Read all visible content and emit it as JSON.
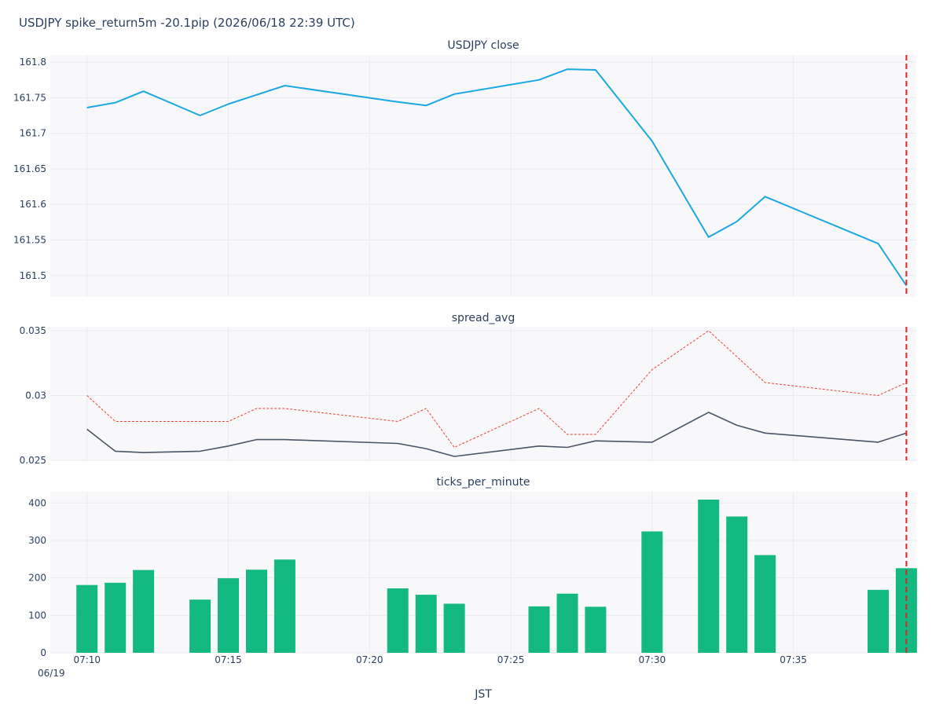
{
  "title": "USDJPY spike_return5m -20.1pip (2026/06/18 22:39 UTC)",
  "xlabel": "JST",
  "x_ticks": [
    "07:10",
    "07:15",
    "07:20",
    "07:25",
    "07:30",
    "07:35"
  ],
  "x_date_label": "06/19",
  "event_time": "07:39",
  "colors": {
    "close": "#1ba7e1",
    "spread_avg": "#4a5565",
    "spread_max": "#e8423a",
    "ticks": "#13b980",
    "event_line": "#d62728"
  },
  "chart_data": [
    {
      "type": "line",
      "title": "USDJPY close",
      "ylim": [
        161.47,
        161.81
      ],
      "y_ticks": [
        "161.5",
        "161.55",
        "161.6",
        "161.65",
        "161.7",
        "161.75",
        "161.8"
      ],
      "x": [
        "07:10",
        "07:11",
        "07:12",
        "07:14",
        "07:15",
        "07:17",
        "07:21",
        "07:22",
        "07:23",
        "07:26",
        "07:27",
        "07:28",
        "07:30",
        "07:32",
        "07:33",
        "07:34",
        "07:38",
        "07:39"
      ],
      "values": [
        161.736,
        161.743,
        161.759,
        161.725,
        161.741,
        161.767,
        161.744,
        161.739,
        161.755,
        161.775,
        161.79,
        161.789,
        161.689,
        161.554,
        161.576,
        161.611,
        161.545,
        161.486
      ],
      "grid": true
    },
    {
      "type": "line",
      "title": "spread_avg",
      "ylim": [
        0.025,
        0.0353
      ],
      "y_ticks": [
        "0.025",
        "0.03",
        "0.035"
      ],
      "series": [
        {
          "x": [
            "07:10",
            "07:11",
            "07:12",
            "07:14",
            "07:15",
            "07:16",
            "07:17",
            "07:21",
            "07:22",
            "07:23",
            "07:26",
            "07:27",
            "07:28",
            "07:30",
            "07:32",
            "07:33",
            "07:34",
            "07:38",
            "07:39"
          ],
          "values": [
            0.0274,
            0.0257,
            0.0256,
            0.0257,
            0.0261,
            0.0266,
            0.0266,
            0.0263,
            0.0259,
            0.0253,
            0.0261,
            0.026,
            0.0265,
            0.0264,
            0.0287,
            0.0277,
            0.0271,
            0.0264,
            0.0271
          ],
          "style": "solid"
        },
        {
          "x": [
            "07:10",
            "07:11",
            "07:12",
            "07:14",
            "07:15",
            "07:16",
            "07:17",
            "07:21",
            "07:22",
            "07:23",
            "07:26",
            "07:27",
            "07:28",
            "07:30",
            "07:32",
            "07:33",
            "07:34",
            "07:38",
            "07:39"
          ],
          "values": [
            0.03,
            0.028,
            0.028,
            0.028,
            0.028,
            0.029,
            0.029,
            0.028,
            0.029,
            0.026,
            0.029,
            0.027,
            0.027,
            0.032,
            0.035,
            0.033,
            0.031,
            0.03,
            0.031
          ],
          "style": "dotted"
        }
      ],
      "grid": true
    },
    {
      "type": "bar",
      "title": "ticks_per_minute",
      "ylim": [
        0,
        430
      ],
      "y_ticks": [
        "0",
        "100",
        "200",
        "300",
        "400"
      ],
      "x": [
        "07:10",
        "07:11",
        "07:12",
        "07:14",
        "07:15",
        "07:16",
        "07:17",
        "07:21",
        "07:22",
        "07:23",
        "07:26",
        "07:27",
        "07:28",
        "07:30",
        "07:32",
        "07:33",
        "07:34",
        "07:38",
        "07:39"
      ],
      "values": [
        181,
        187,
        221,
        142,
        199,
        222,
        249,
        172,
        155,
        131,
        124,
        158,
        123,
        324,
        409,
        364,
        261,
        168,
        226
      ],
      "grid": true
    }
  ]
}
